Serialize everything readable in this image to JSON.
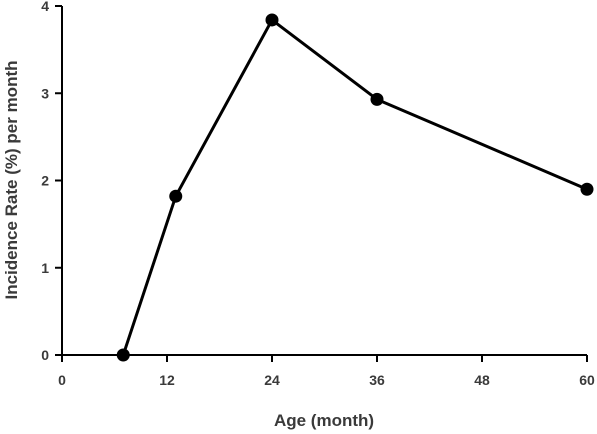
{
  "chart_data": {
    "type": "line",
    "title": "",
    "xlabel": "Age (month)",
    "ylabel": "Incidence Rate (%) per month",
    "xlim": [
      0,
      60
    ],
    "ylim": [
      0,
      4
    ],
    "xticks": [
      0,
      12,
      24,
      36,
      48,
      60
    ],
    "xtick_labels": [
      "0",
      "12",
      "24",
      "36",
      "48",
      "60"
    ],
    "yticks": [
      0,
      1,
      2,
      3,
      4
    ],
    "ytick_labels": [
      "0",
      "1",
      "2",
      "3",
      "4"
    ],
    "grid": false,
    "legend": "none",
    "series": [
      {
        "x": [
          7,
          13,
          24,
          36,
          60
        ],
        "y": [
          0,
          1.82,
          3.84,
          2.93,
          1.9
        ],
        "color": "#000000",
        "marker": "circle"
      }
    ]
  }
}
